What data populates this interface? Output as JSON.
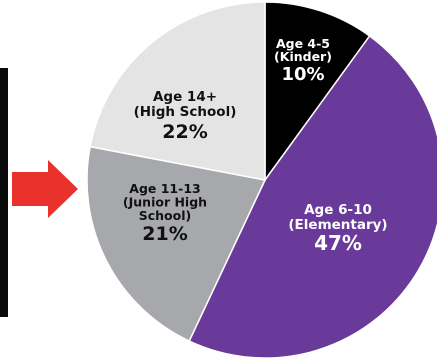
{
  "chart_data": {
    "type": "pie",
    "title": "",
    "slices": [
      {
        "lines": [
          "Age 4-5",
          "(Kinder)"
        ],
        "percent_label": "10%",
        "value": 10,
        "color": "#000000",
        "text_color": "#ffffff"
      },
      {
        "lines": [
          "Age 6-10",
          "(Elementary)"
        ],
        "percent_label": "47%",
        "value": 47,
        "color": "#6a3a9b",
        "text_color": "#ffffff"
      },
      {
        "lines": [
          "Age 11-13",
          "(Junior High",
          "School)"
        ],
        "percent_label": "21%",
        "value": 21,
        "color": "#a6a8ab",
        "text_color": "#111111"
      },
      {
        "lines": [
          "Age 14+",
          "(High School)"
        ],
        "percent_label": "22%",
        "value": 22,
        "color": "#e4e4e5",
        "text_color": "#111111"
      }
    ],
    "start_angle_deg": 0,
    "direction": "clockwise",
    "legend": "none",
    "pointer_arrow": {
      "target": "Age 11-13 (Junior High School)",
      "color": "#e8322b"
    }
  }
}
